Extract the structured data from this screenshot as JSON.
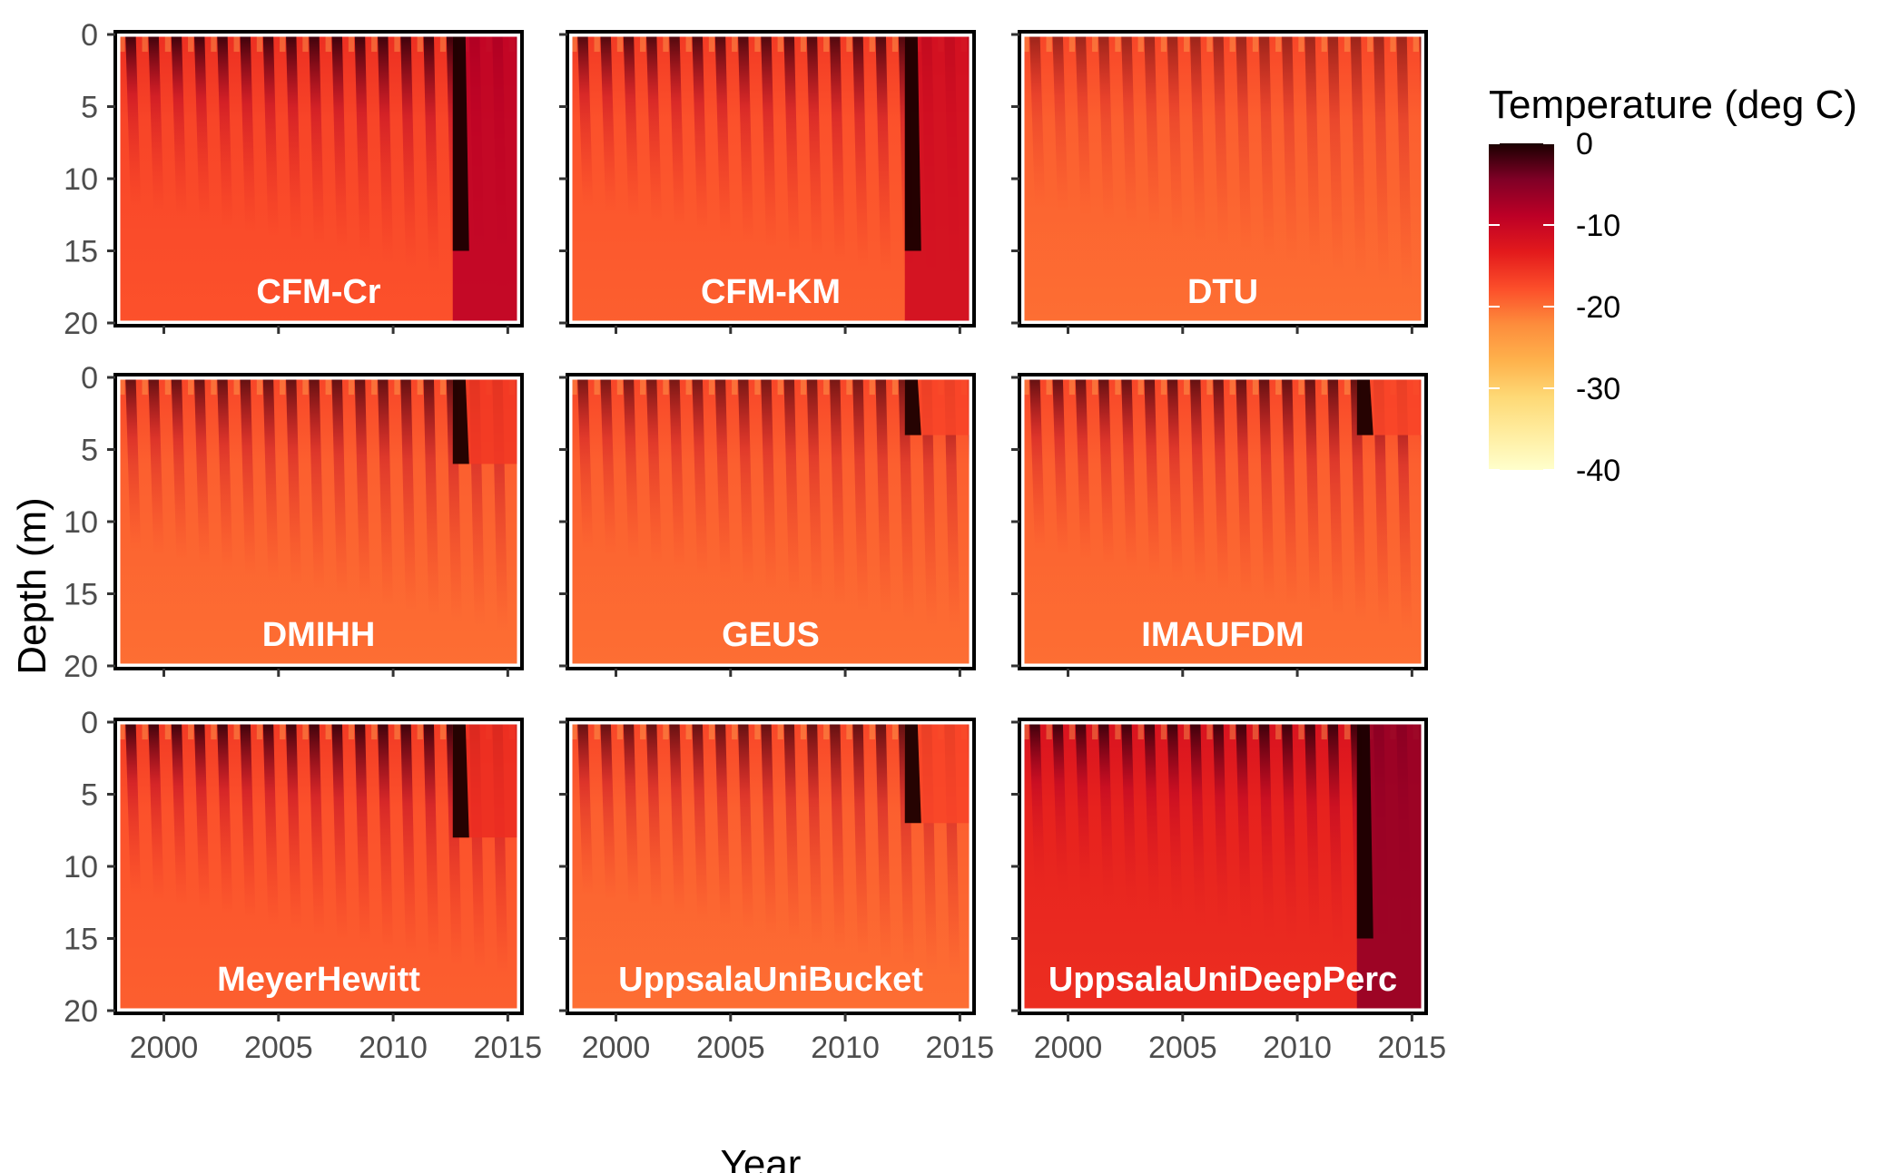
{
  "chart_data": {
    "type": "heatmap",
    "xlabel": "Year",
    "ylabel": "Depth (m)",
    "x_ticks": [
      2000,
      2005,
      2010,
      2015
    ],
    "xlim": [
      1998,
      2015.5
    ],
    "y_ticks": [
      0,
      5,
      10,
      15,
      20
    ],
    "ylim": [
      0,
      20
    ],
    "y_reversed": true,
    "facet_layout": "3x3",
    "panels": [
      {
        "name": "CFM-Cr",
        "base_temp": -17,
        "stripe_strength": 1.0,
        "late_warm_depth": 20,
        "late_temp": -9,
        "warm_deep": true
      },
      {
        "name": "CFM-KM",
        "base_temp": -18,
        "stripe_strength": 0.9,
        "late_warm_depth": 20,
        "late_temp": -11,
        "warm_deep": true
      },
      {
        "name": "DTU",
        "base_temp": -19,
        "stripe_strength": 0.5,
        "late_warm_depth": 0,
        "late_temp": -19,
        "warm_deep": false
      },
      {
        "name": "DMIHH",
        "base_temp": -19,
        "stripe_strength": 0.8,
        "late_warm_depth": 6,
        "late_temp": -16,
        "warm_deep": false
      },
      {
        "name": "GEUS",
        "base_temp": -19,
        "stripe_strength": 0.7,
        "late_warm_depth": 4,
        "late_temp": -17,
        "warm_deep": false
      },
      {
        "name": "IMAUFDM",
        "base_temp": -19,
        "stripe_strength": 0.8,
        "late_warm_depth": 4,
        "late_temp": -17,
        "warm_deep": false
      },
      {
        "name": "MeyerHewitt",
        "base_temp": -18,
        "stripe_strength": 1.0,
        "late_warm_depth": 8,
        "late_temp": -15,
        "warm_deep": false
      },
      {
        "name": "UppsalaUniBucket",
        "base_temp": -19,
        "stripe_strength": 0.8,
        "late_warm_depth": 7,
        "late_temp": -17,
        "warm_deep": false
      },
      {
        "name": "UppsalaUniDeepPerc",
        "base_temp": -14,
        "stripe_strength": 1.0,
        "late_warm_depth": 20,
        "late_temp": -6,
        "warm_deep": true
      }
    ],
    "legend": {
      "title": "Temperature (deg C)",
      "placement": "right",
      "ticks": [
        0,
        -10,
        -20,
        -30,
        -40
      ],
      "range": [
        -40,
        0
      ],
      "colors": [
        "#ffffcc",
        "#ffeda0",
        "#fed976",
        "#feb24c",
        "#fd8d3c",
        "#fc4e2a",
        "#e31a1c",
        "#bd0026",
        "#800026",
        "#1a0000"
      ]
    }
  }
}
